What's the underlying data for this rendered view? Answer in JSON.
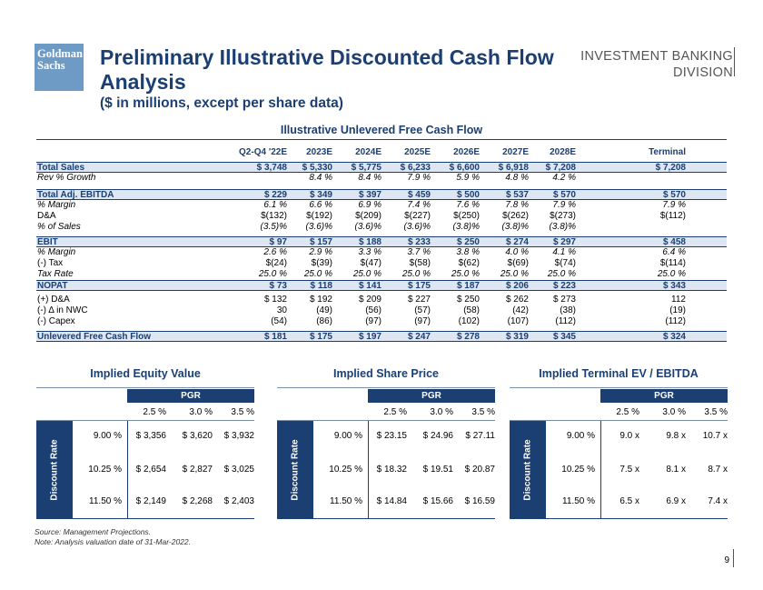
{
  "header": {
    "logo_line1": "Goldman",
    "logo_line2": "Sachs",
    "title": "Preliminary Illustrative Discounted Cash Flow Analysis",
    "subtitle": "($ in millions, except per share data)",
    "division_line1": "INVESTMENT BANKING",
    "division_line2": "DIVISION"
  },
  "fcf": {
    "title": "Illustrative Unlevered Free Cash Flow",
    "columns": [
      "Q2-Q4 '22E",
      "2023E",
      "2024E",
      "2025E",
      "2026E",
      "2027E",
      "2028E",
      "Terminal"
    ],
    "rows": [
      {
        "label": "Total Sales",
        "style": "hl",
        "values": [
          "$ 3,748",
          "$ 5,330",
          "$ 5,775",
          "$ 6,233",
          "$ 6,600",
          "$ 6,918",
          "$ 7,208",
          "$ 7,208"
        ]
      },
      {
        "label": "Rev % Growth",
        "style": "it",
        "values": [
          "",
          "8.4 %",
          "8.4 %",
          "7.9 %",
          "5.9 %",
          "4.8 %",
          "4.2 %",
          ""
        ]
      },
      {
        "label": "Total Adj. EBITDA",
        "style": "hl",
        "values": [
          "$ 229",
          "$ 349",
          "$ 397",
          "$ 459",
          "$ 500",
          "$ 537",
          "$ 570",
          "$ 570"
        ]
      },
      {
        "label": "% Margin",
        "style": "it",
        "values": [
          "6.1 %",
          "6.6 %",
          "6.9 %",
          "7.4 %",
          "7.6 %",
          "7.8 %",
          "7.9 %",
          "7.9 %"
        ]
      },
      {
        "label": "D&A",
        "style": "",
        "values": [
          "$(132)",
          "$(192)",
          "$(209)",
          "$(227)",
          "$(250)",
          "$(262)",
          "$(273)",
          "$(112)"
        ]
      },
      {
        "label": "% of Sales",
        "style": "it",
        "values": [
          "(3.5)%",
          "(3.6)%",
          "(3.6)%",
          "(3.6)%",
          "(3.8)%",
          "(3.8)%",
          "(3.8)%",
          ""
        ]
      },
      {
        "label": "EBIT",
        "style": "hl",
        "values": [
          "$ 97",
          "$ 157",
          "$ 188",
          "$ 233",
          "$ 250",
          "$ 274",
          "$ 297",
          "$ 458"
        ]
      },
      {
        "label": "% Margin",
        "style": "it",
        "values": [
          "2.6 %",
          "2.9 %",
          "3.3 %",
          "3.7 %",
          "3.8 %",
          "4.0 %",
          "4.1 %",
          "6.4 %"
        ]
      },
      {
        "label": "(-) Tax",
        "style": "",
        "values": [
          "$(24)",
          "$(39)",
          "$(47)",
          "$(58)",
          "$(62)",
          "$(69)",
          "$(74)",
          "$(114)"
        ]
      },
      {
        "label": "Tax Rate",
        "style": "it",
        "values": [
          "25.0 %",
          "25.0 %",
          "25.0 %",
          "25.0 %",
          "25.0 %",
          "25.0 %",
          "25.0 %",
          "25.0 %"
        ]
      },
      {
        "label": "NOPAT",
        "style": "hl",
        "values": [
          "$ 73",
          "$ 118",
          "$ 141",
          "$ 175",
          "$ 187",
          "$ 206",
          "$ 223",
          "$ 343"
        ]
      },
      {
        "label": "(+) D&A",
        "style": "",
        "values": [
          "$ 132",
          "$ 192",
          "$ 209",
          "$ 227",
          "$ 250",
          "$ 262",
          "$ 273",
          "112"
        ]
      },
      {
        "label": "(-) Δ in NWC",
        "style": "",
        "values": [
          "30",
          "(49)",
          "(56)",
          "(57)",
          "(58)",
          "(42)",
          "(38)",
          "(19)"
        ]
      },
      {
        "label": "(-) Capex",
        "style": "",
        "values": [
          "(54)",
          "(86)",
          "(97)",
          "(97)",
          "(102)",
          "(107)",
          "(112)",
          "(112)"
        ]
      },
      {
        "label": "Unlevered Free Cash Flow",
        "style": "hl",
        "values": [
          "$ 181",
          "$ 175",
          "$ 197",
          "$ 247",
          "$ 278",
          "$ 319",
          "$ 345",
          "$ 324"
        ]
      }
    ]
  },
  "sensitivities": [
    {
      "title": "Implied Equity Value",
      "pgr_label": "PGR",
      "discount_label": "Discount Rate",
      "pgr": [
        "2.5 %",
        "3.0 %",
        "3.5 %"
      ],
      "rates": [
        "9.00 %",
        "10.25 %",
        "11.50 %"
      ],
      "values": [
        [
          "$ 3,356",
          "$ 3,620",
          "$ 3,932"
        ],
        [
          "$ 2,654",
          "$ 2,827",
          "$ 3,025"
        ],
        [
          "$ 2,149",
          "$ 2,268",
          "$ 2,403"
        ]
      ]
    },
    {
      "title": "Implied Share Price",
      "pgr_label": "PGR",
      "discount_label": "Discount Rate",
      "pgr": [
        "2.5 %",
        "3.0 %",
        "3.5 %"
      ],
      "rates": [
        "9.00 %",
        "10.25 %",
        "11.50 %"
      ],
      "values": [
        [
          "$ 23.15",
          "$ 24.96",
          "$ 27.11"
        ],
        [
          "$ 18.32",
          "$ 19.51",
          "$ 20.87"
        ],
        [
          "$ 14.84",
          "$ 15.66",
          "$ 16.59"
        ]
      ]
    },
    {
      "title": "Implied Terminal EV / EBITDA",
      "pgr_label": "PGR",
      "discount_label": "Discount Rate",
      "pgr": [
        "2.5 %",
        "3.0 %",
        "3.5 %"
      ],
      "rates": [
        "9.00 %",
        "10.25 %",
        "11.50 %"
      ],
      "values": [
        [
          "9.0 x",
          "9.8 x",
          "10.7 x"
        ],
        [
          "7.5 x",
          "8.1 x",
          "8.7 x"
        ],
        [
          "6.5 x",
          "6.9 x",
          "7.4 x"
        ]
      ]
    }
  ],
  "footer": {
    "source": "Source: Management Projections.",
    "note": "Note: Analysis valuation date of 31-Mar-2022.",
    "page": "9"
  },
  "colors": {
    "navy": "#1b3f73",
    "highlight_row": "#dde6f1",
    "logo_blue": "#6e9ac6"
  }
}
